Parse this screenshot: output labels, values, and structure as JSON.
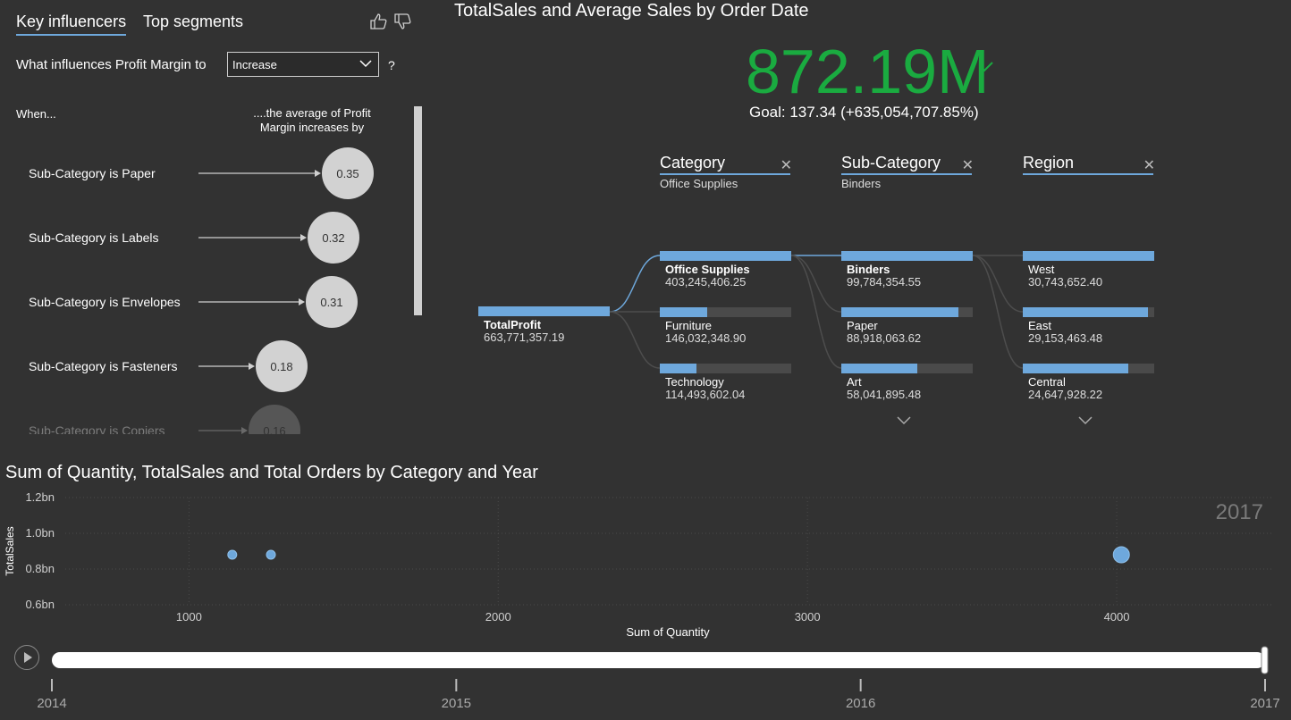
{
  "key_influencers": {
    "tabs": [
      {
        "label": "Key influencers",
        "active": true
      },
      {
        "label": "Top segments",
        "active": false
      }
    ],
    "question_prefix": "What influences Profit Margin to",
    "dropdown_value": "Increase",
    "question_suffix": "?",
    "when_label": "When...",
    "avg_label": "....the average of Profit Margin increases by",
    "items": [
      {
        "label": "Sub-Category is Paper",
        "value": "0.35"
      },
      {
        "label": "Sub-Category is Labels",
        "value": "0.32"
      },
      {
        "label": "Sub-Category is Envelopes",
        "value": "0.31"
      },
      {
        "label": "Sub-Category is Fasteners",
        "value": "0.18"
      },
      {
        "label": "Sub-Category is Copiers",
        "value": "0.16"
      }
    ]
  },
  "decomposition": {
    "title": "TotalSales and Average Sales by Order Date",
    "kpi_value": "872.19M",
    "kpi_goal": "Goal: 137.34 (+635,054,707.85%)",
    "accent_color": "#1aab40",
    "bar_color": "#6ea8dc",
    "root": {
      "name": "TotalProfit",
      "value": "663,771,357.19"
    },
    "columns": [
      {
        "header": "Category",
        "selected": "Office Supplies"
      },
      {
        "header": "Sub-Category",
        "selected": "Binders"
      },
      {
        "header": "Region",
        "selected": ""
      }
    ],
    "category_nodes": [
      {
        "name": "Office Supplies",
        "value": "403,245,406.25",
        "fill": 1.0,
        "bold": true
      },
      {
        "name": "Furniture",
        "value": "146,032,348.90",
        "fill": 0.36,
        "bold": false
      },
      {
        "name": "Technology",
        "value": "114,493,602.04",
        "fill": 0.28,
        "bold": false
      }
    ],
    "subcategory_nodes": [
      {
        "name": "Binders",
        "value": "99,784,354.55",
        "fill": 1.0,
        "bold": true
      },
      {
        "name": "Paper",
        "value": "88,918,063.62",
        "fill": 0.89,
        "bold": false
      },
      {
        "name": "Art",
        "value": "58,041,895.48",
        "fill": 0.58,
        "bold": false
      }
    ],
    "region_nodes": [
      {
        "name": "West",
        "value": "30,743,652.40",
        "fill": 1.0,
        "bold": false
      },
      {
        "name": "East",
        "value": "29,153,463.48",
        "fill": 0.95,
        "bold": false
      },
      {
        "name": "Central",
        "value": "24,647,928.22",
        "fill": 0.8,
        "bold": false
      }
    ]
  },
  "scatter": {
    "title": "Sum of Quantity, TotalSales and Total Orders by Category and Year",
    "play_axis_ticks": [
      "2014",
      "2015",
      "2016",
      "2017"
    ],
    "play_position": 1.0,
    "year_watermark": "2017"
  },
  "chart_data": {
    "type": "scatter",
    "title": "Sum of Quantity, TotalSales and Total Orders by Category and Year",
    "xlabel": "Sum of Quantity",
    "ylabel": "TotalSales",
    "xlim": [
      600,
      4500
    ],
    "ylim": [
      0.6,
      1.2
    ],
    "x_ticks": [
      "1000",
      "2000",
      "3000",
      "4000"
    ],
    "y_ticks": [
      "0.6bn",
      "0.8bn",
      "1.0bn",
      "1.2bn"
    ],
    "grid": true,
    "series": [
      {
        "color": "#6ea8dc",
        "points": [
          {
            "x": 1140,
            "y": 0.88,
            "size": 1
          },
          {
            "x": 1265,
            "y": 0.88,
            "size": 1
          },
          {
            "x": 4015,
            "y": 0.88,
            "size": 3
          }
        ]
      }
    ]
  }
}
